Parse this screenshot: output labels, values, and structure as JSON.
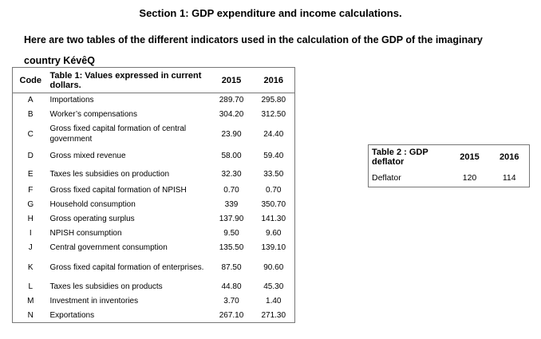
{
  "heading": "Section 1: GDP expenditure and income calculations.",
  "intro": "Here are two tables of the different indicators used in the calculation of the GDP of the imaginary country KévêQ",
  "table1": {
    "headers": [
      "Code",
      "Table 1: Values expressed in current dollars.",
      "2015",
      "2016"
    ],
    "rows": [
      {
        "code": "A",
        "indicator": "Importations",
        "y2015": "289.70",
        "y2016": "295.80"
      },
      {
        "code": "B",
        "indicator": "Worker’s compensations",
        "y2015": "304.20",
        "y2016": "312.50"
      },
      {
        "code": "C",
        "indicator": "Gross fixed capital formation of central government",
        "y2015": "23.90",
        "y2016": "24.40"
      },
      {
        "code": "D",
        "indicator": "Gross mixed revenue",
        "y2015": "58.00",
        "y2016": "59.40"
      },
      {
        "code": "E",
        "indicator": "Taxes les subsidies on production",
        "y2015": "32.30",
        "y2016": "33.50"
      },
      {
        "code": "F",
        "indicator": "Gross fixed capital formation of NPISH",
        "y2015": "0.70",
        "y2016": "0.70"
      },
      {
        "code": "G",
        "indicator": "Household consumption",
        "y2015": "339",
        "y2016": "350.70"
      },
      {
        "code": "H",
        "indicator": "Gross operating surplus",
        "y2015": "137.90",
        "y2016": "141.30"
      },
      {
        "code": "I",
        "indicator": "NPISH consumption",
        "y2015": "9.50",
        "y2016": "9.60"
      },
      {
        "code": "J",
        "indicator": "Central government consumption",
        "y2015": "135.50",
        "y2016": "139.10"
      },
      {
        "code": "K",
        "indicator": "Gross fixed capital formation of enterprises.",
        "y2015": "87.50",
        "y2016": "90.60"
      },
      {
        "code": "L",
        "indicator": "Taxes les subsidies on products",
        "y2015": "44.80",
        "y2016": "45.30"
      },
      {
        "code": "M",
        "indicator": "Investment in inventories",
        "y2015": "3.70",
        "y2016": "1.40"
      },
      {
        "code": "N",
        "indicator": "Exportations",
        "y2015": "267.10",
        "y2016": "271.30"
      }
    ]
  },
  "table2": {
    "headers": [
      "Table 2 : GDP deflator",
      "2015",
      "2016"
    ],
    "row": {
      "label": "Deflator",
      "y2015": "120",
      "y2016": "114"
    }
  }
}
